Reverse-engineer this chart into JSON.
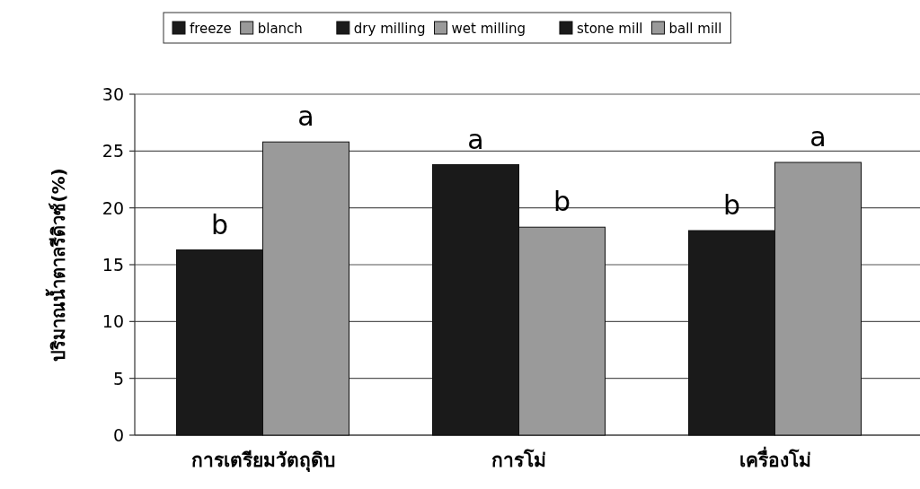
{
  "chart_data": {
    "type": "bar",
    "ylabel": "ปริมาณน้ำตาลรีดิวซ์(%)",
    "categories": [
      "การเตรียมวัตถุดิบ",
      "การโม่",
      "เครื่องโม่"
    ],
    "series": [
      {
        "name": "freeze",
        "color": "#1a1a1a",
        "values": [
          16.3,
          null,
          null
        ]
      },
      {
        "name": "blanch",
        "color": "#9a9a9a",
        "values": [
          25.8,
          null,
          null
        ]
      },
      {
        "name": "dry milling",
        "color": "#1a1a1a",
        "values": [
          null,
          23.8,
          null
        ]
      },
      {
        "name": "wet milling",
        "color": "#9a9a9a",
        "values": [
          null,
          18.3,
          null
        ]
      },
      {
        "name": "stone mill",
        "color": "#1a1a1a",
        "values": [
          null,
          null,
          18.0
        ]
      },
      {
        "name": "ball mill",
        "color": "#9a9a9a",
        "values": [
          null,
          null,
          24.0
        ]
      }
    ],
    "ylim": [
      0,
      30
    ],
    "yticks": [
      0,
      5,
      10,
      15,
      20,
      25,
      30
    ],
    "grid": "y",
    "legend": "top",
    "annotations": [
      {
        "text": "b",
        "x": "การเตรียมวัตถุดิบ",
        "y": 16.3
      },
      {
        "text": "a",
        "x": "การเตรียมวัตถุดิบ",
        "y": 25.8
      },
      {
        "text": "a",
        "x": "การโม่",
        "y": 23.8
      },
      {
        "text": "b",
        "x": "การโม่",
        "y": 18.3
      },
      {
        "text": "b",
        "x": "เครื่องโม่",
        "y": 18.0
      },
      {
        "text": "a",
        "x": "เครื่องโม่",
        "y": 24.0
      }
    ]
  }
}
